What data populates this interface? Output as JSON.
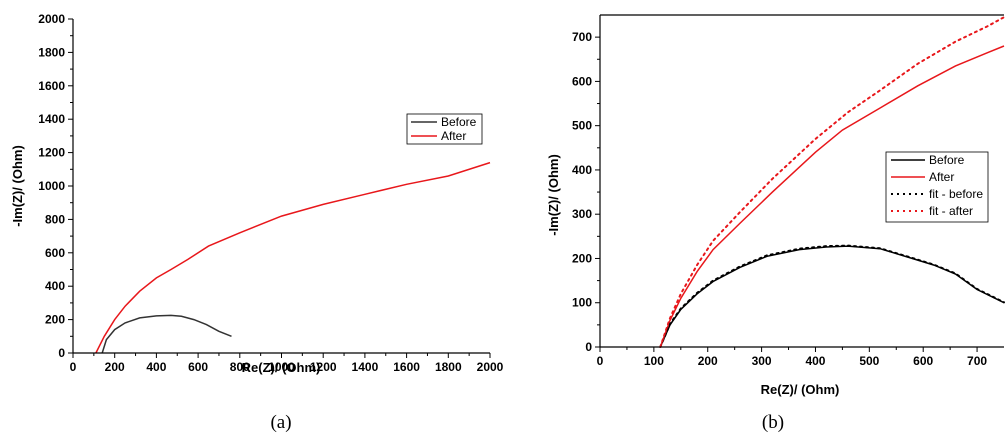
{
  "chart_data": [
    {
      "type": "line",
      "panel_label": "(a)",
      "xlabel": "Re(Z)/ (Ohm)",
      "ylabel": "-Im(Z)/ (Ohm)",
      "xlim": [
        0,
        2000
      ],
      "ylim": [
        0,
        2000
      ],
      "xticks": [
        0,
        200,
        400,
        600,
        800,
        1000,
        1200,
        1400,
        1600,
        1800,
        2000
      ],
      "yticks": [
        0,
        200,
        400,
        600,
        800,
        1000,
        1200,
        1400,
        1600,
        1800,
        2000
      ],
      "grid": false,
      "legend_position": "right",
      "series": [
        {
          "name": "Before",
          "color": "#333333",
          "style": "solid",
          "x": [
            140,
            160,
            200,
            250,
            320,
            400,
            470,
            520,
            580,
            640,
            700,
            760
          ],
          "y": [
            0,
            80,
            140,
            180,
            210,
            222,
            225,
            220,
            200,
            170,
            130,
            100
          ]
        },
        {
          "name": "After",
          "color": "#e8171b",
          "style": "solid",
          "x": [
            110,
            150,
            200,
            250,
            320,
            400,
            470,
            550,
            650,
            800,
            1000,
            1200,
            1400,
            1600,
            1800,
            2000
          ],
          "y": [
            0,
            100,
            200,
            280,
            370,
            450,
            500,
            560,
            640,
            720,
            820,
            890,
            950,
            1010,
            1060,
            1140
          ]
        }
      ]
    },
    {
      "type": "line",
      "panel_label": "(b)",
      "xlabel": "Re(Z)/ (Ohm)",
      "ylabel": "-Im(Z)/ (Ohm)",
      "xlim": [
        0,
        750
      ],
      "ylim": [
        0,
        750
      ],
      "xticks": [
        0,
        100,
        200,
        300,
        400,
        500,
        600,
        700
      ],
      "yticks": [
        0,
        100,
        200,
        300,
        400,
        500,
        600,
        700
      ],
      "grid": false,
      "legend_position": "right",
      "series": [
        {
          "name": "Before",
          "color": "#000000",
          "style": "solid",
          "x": [
            112,
            130,
            150,
            180,
            210,
            260,
            310,
            370,
            420,
            460,
            520,
            580,
            620,
            660,
            700,
            750
          ],
          "y": [
            0,
            50,
            85,
            120,
            148,
            180,
            205,
            220,
            226,
            228,
            222,
            200,
            185,
            165,
            130,
            100
          ]
        },
        {
          "name": "After",
          "color": "#e8171b",
          "style": "solid",
          "x": [
            112,
            130,
            150,
            180,
            210,
            260,
            320,
            400,
            450,
            520,
            590,
            660,
            720,
            750
          ],
          "y": [
            0,
            60,
            110,
            170,
            220,
            280,
            350,
            440,
            490,
            540,
            590,
            635,
            665,
            680
          ]
        },
        {
          "name": "fit - before",
          "color": "#000000",
          "style": "dotted",
          "x": [
            112,
            130,
            150,
            180,
            210,
            260,
            310,
            370,
            420,
            460,
            520,
            580,
            620,
            660,
            700,
            750
          ],
          "y": [
            0,
            52,
            87,
            122,
            150,
            182,
            207,
            222,
            228,
            229,
            223,
            201,
            186,
            166,
            131,
            101
          ]
        },
        {
          "name": "fit - after",
          "color": "#e8171b",
          "style": "dotted",
          "x": [
            112,
            130,
            150,
            180,
            210,
            260,
            320,
            400,
            460,
            520,
            590,
            660,
            720,
            750
          ],
          "y": [
            0,
            65,
            120,
            185,
            240,
            305,
            380,
            470,
            530,
            580,
            640,
            690,
            725,
            745
          ]
        }
      ]
    }
  ]
}
